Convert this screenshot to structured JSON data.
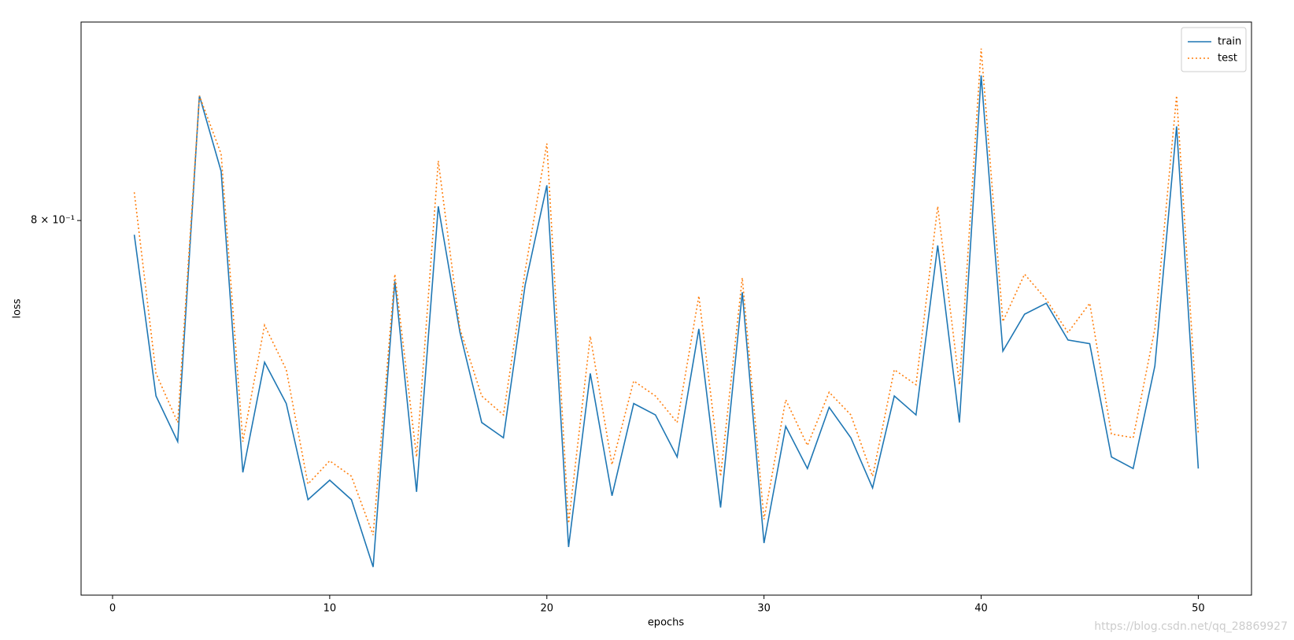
{
  "chart_data": {
    "type": "line",
    "x": [
      1,
      2,
      3,
      4,
      5,
      6,
      7,
      8,
      9,
      10,
      11,
      12,
      13,
      14,
      15,
      16,
      17,
      18,
      19,
      20,
      21,
      22,
      23,
      24,
      25,
      26,
      27,
      28,
      29,
      30,
      31,
      32,
      33,
      34,
      35,
      36,
      37,
      38,
      39,
      40,
      41,
      42,
      43,
      44,
      45,
      46,
      47,
      48,
      49,
      50
    ],
    "series": [
      {
        "name": "train",
        "color": "#1f77b4",
        "linestyle": "solid",
        "values": [
          0.796,
          0.752,
          0.74,
          0.836,
          0.814,
          0.732,
          0.761,
          0.75,
          0.725,
          0.73,
          0.725,
          0.708,
          0.783,
          0.727,
          0.804,
          0.769,
          0.745,
          0.741,
          0.782,
          0.81,
          0.713,
          0.758,
          0.726,
          0.75,
          0.747,
          0.736,
          0.77,
          0.723,
          0.78,
          0.714,
          0.744,
          0.733,
          0.749,
          0.741,
          0.728,
          0.752,
          0.747,
          0.793,
          0.745,
          0.842,
          0.764,
          0.774,
          0.777,
          0.767,
          0.766,
          0.736,
          0.733,
          0.76,
          0.827,
          0.733
        ]
      },
      {
        "name": "test",
        "color": "#ff7f0e",
        "linestyle": "dotted",
        "values": [
          0.808,
          0.758,
          0.745,
          0.836,
          0.819,
          0.74,
          0.771,
          0.759,
          0.729,
          0.735,
          0.731,
          0.716,
          0.785,
          0.736,
          0.817,
          0.77,
          0.752,
          0.747,
          0.786,
          0.822,
          0.719,
          0.768,
          0.734,
          0.756,
          0.752,
          0.745,
          0.779,
          0.731,
          0.784,
          0.72,
          0.751,
          0.739,
          0.753,
          0.747,
          0.731,
          0.759,
          0.755,
          0.804,
          0.755,
          0.85,
          0.772,
          0.785,
          0.778,
          0.769,
          0.777,
          0.742,
          0.741,
          0.77,
          0.836,
          0.742
        ]
      }
    ],
    "xlabel": "epochs",
    "ylabel": "loss",
    "xlim": [
      -1.45,
      52.45
    ],
    "xticks": [
      0,
      10,
      20,
      30,
      40,
      50
    ],
    "ylim": [
      0.701,
      0.858
    ],
    "yscale": "log",
    "yticks": [
      {
        "value": 0.8,
        "label": "8 × 10⁻¹"
      }
    ],
    "legend": "upper right",
    "watermark": "https://blog.csdn.net/qq_28869927"
  }
}
